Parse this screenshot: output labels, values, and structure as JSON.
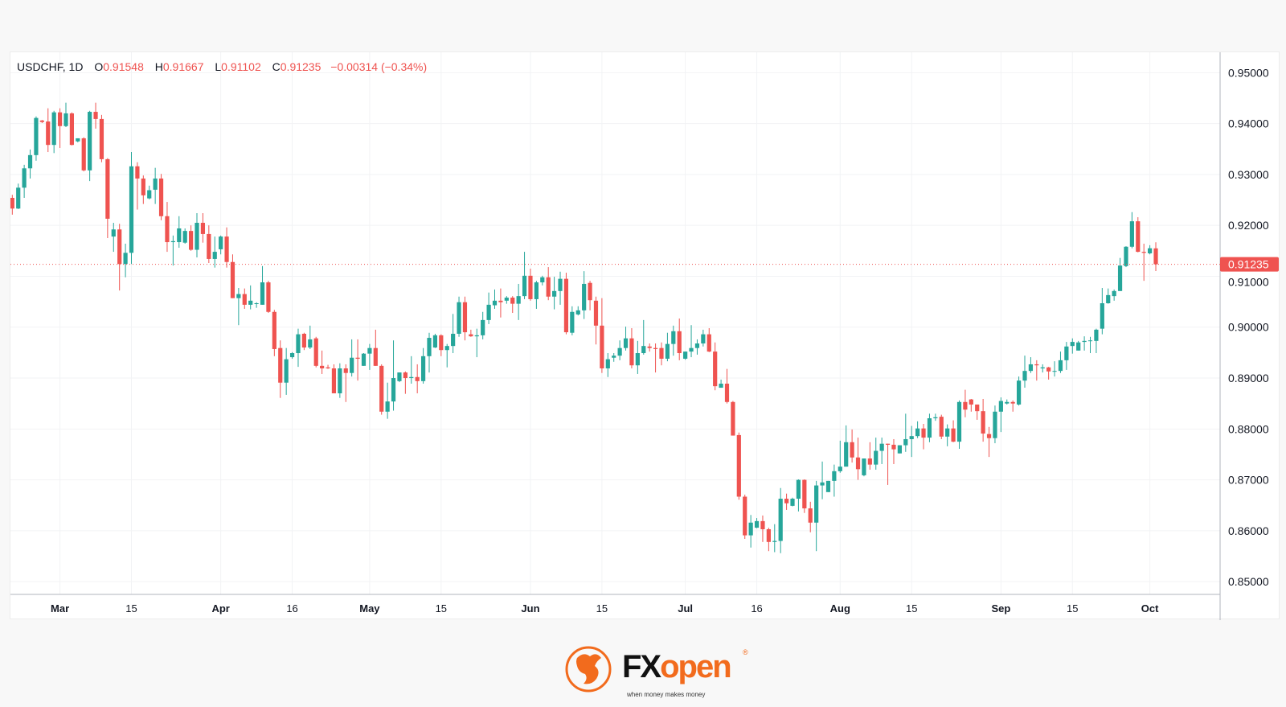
{
  "legend": {
    "symbol": "USDCHF, 1D",
    "o_label": "O",
    "o": "0.91548",
    "h_label": "H",
    "h": "0.91667",
    "l_label": "L",
    "l": "0.91102",
    "c_label": "C",
    "c": "0.91235",
    "change": "−0.00314 (−0.34%)"
  },
  "colors": {
    "up": "#26a69a",
    "down": "#ef5350",
    "grid": "#f2f3f5",
    "text": "#131722",
    "brand": "#f26b1d"
  },
  "logo": {
    "brand": "FXopen",
    "brand_fx": "FX",
    "brand_open": "open",
    "tagline": "when money makes money",
    "registered": "®"
  },
  "chart_data": {
    "type": "candlestick",
    "symbol": "USDCHF",
    "interval": "1D",
    "ylim": [
      0.8475,
      0.954
    ],
    "grid": true,
    "last_price": "0.91235",
    "y_ticks": [
      "0.95000",
      "0.94000",
      "0.93000",
      "0.92000",
      "0.91000",
      "0.90000",
      "0.89000",
      "0.88000",
      "0.87000",
      "0.86000",
      "0.85000"
    ],
    "x_ticks": [
      {
        "label": "Mar",
        "index": 8,
        "bold": true
      },
      {
        "label": "15",
        "index": 20
      },
      {
        "label": "Apr",
        "index": 35,
        "bold": true
      },
      {
        "label": "16",
        "index": 47
      },
      {
        "label": "May",
        "index": 60,
        "bold": true
      },
      {
        "label": "15",
        "index": 72
      },
      {
        "label": "Jun",
        "index": 87,
        "bold": true
      },
      {
        "label": "15",
        "index": 99
      },
      {
        "label": "Jul",
        "index": 113,
        "bold": true
      },
      {
        "label": "16",
        "index": 125
      },
      {
        "label": "Aug",
        "index": 139,
        "bold": true
      },
      {
        "label": "15",
        "index": 151
      },
      {
        "label": "Sep",
        "index": 166,
        "bold": true
      },
      {
        "label": "15",
        "index": 178
      },
      {
        "label": "Oct",
        "index": 191,
        "bold": true
      }
    ],
    "ohlc_fields": [
      "open",
      "high",
      "low",
      "close"
    ],
    "ohlc": [
      [
        0.9254,
        0.926,
        0.9221,
        0.9233
      ],
      [
        0.9233,
        0.9282,
        0.9232,
        0.9274
      ],
      [
        0.9274,
        0.9319,
        0.9254,
        0.9312
      ],
      [
        0.9312,
        0.9349,
        0.9292,
        0.9338
      ],
      [
        0.9338,
        0.9414,
        0.9327,
        0.9411
      ],
      [
        0.9406,
        0.9407,
        0.9401,
        0.9403
      ],
      [
        0.9404,
        0.943,
        0.9344,
        0.9358
      ],
      [
        0.9358,
        0.9425,
        0.9342,
        0.9422
      ],
      [
        0.9422,
        0.943,
        0.9352,
        0.9395
      ],
      [
        0.9395,
        0.9441,
        0.9393,
        0.942
      ],
      [
        0.942,
        0.9422,
        0.9357,
        0.9358
      ],
      [
        0.9365,
        0.9371,
        0.9363,
        0.9371
      ],
      [
        0.9371,
        0.9373,
        0.9306,
        0.9308
      ],
      [
        0.9308,
        0.9425,
        0.9287,
        0.9423
      ],
      [
        0.9423,
        0.9441,
        0.939,
        0.9409
      ],
      [
        0.9409,
        0.9417,
        0.9324,
        0.933
      ],
      [
        0.933,
        0.9332,
        0.9175,
        0.9213
      ],
      [
        0.9178,
        0.9205,
        0.9148,
        0.9192
      ],
      [
        0.9192,
        0.9203,
        0.9072,
        0.9124
      ],
      [
        0.9124,
        0.9164,
        0.9098,
        0.9146
      ],
      [
        0.9146,
        0.9344,
        0.9124,
        0.9316
      ],
      [
        0.9316,
        0.9324,
        0.9231,
        0.9292
      ],
      [
        0.9292,
        0.9298,
        0.9242,
        0.9259
      ],
      [
        0.9253,
        0.9278,
        0.9251,
        0.9269
      ],
      [
        0.927,
        0.9313,
        0.9242,
        0.9292
      ],
      [
        0.9292,
        0.9301,
        0.921,
        0.9218
      ],
      [
        0.9218,
        0.9246,
        0.9148,
        0.9167
      ],
      [
        0.9167,
        0.918,
        0.9121,
        0.9169
      ],
      [
        0.9167,
        0.9218,
        0.9156,
        0.9194
      ],
      [
        0.9166,
        0.9194,
        0.9164,
        0.9189
      ],
      [
        0.9189,
        0.92,
        0.915,
        0.9152
      ],
      [
        0.9152,
        0.9224,
        0.9137,
        0.9205
      ],
      [
        0.9205,
        0.9224,
        0.9166,
        0.9183
      ],
      [
        0.9183,
        0.92,
        0.9126,
        0.9134
      ],
      [
        0.9134,
        0.9178,
        0.9117,
        0.9148
      ],
      [
        0.9153,
        0.918,
        0.9143,
        0.9178
      ],
      [
        0.9178,
        0.9196,
        0.9117,
        0.9128
      ],
      [
        0.9128,
        0.9143,
        0.9057,
        0.9057
      ],
      [
        0.9057,
        0.9077,
        0.9004,
        0.9065
      ],
      [
        0.9065,
        0.9076,
        0.9036,
        0.9044
      ],
      [
        0.9044,
        0.9082,
        0.9035,
        0.9052
      ],
      [
        0.9046,
        0.9049,
        0.9038,
        0.9047
      ],
      [
        0.9044,
        0.912,
        0.9044,
        0.9088
      ],
      [
        0.9088,
        0.9091,
        0.9028,
        0.903
      ],
      [
        0.903,
        0.9034,
        0.8943,
        0.8957
      ],
      [
        0.8959,
        0.8974,
        0.8861,
        0.8891
      ],
      [
        0.8891,
        0.8959,
        0.8867,
        0.8937
      ],
      [
        0.8941,
        0.8951,
        0.8938,
        0.8949
      ],
      [
        0.8949,
        0.8997,
        0.8922,
        0.8986
      ],
      [
        0.8987,
        0.8989,
        0.8955,
        0.896
      ],
      [
        0.896,
        0.9003,
        0.8957,
        0.8976
      ],
      [
        0.8978,
        0.8981,
        0.8921,
        0.8924
      ],
      [
        0.8924,
        0.8954,
        0.8908,
        0.8919
      ],
      [
        0.8921,
        0.8926,
        0.8918,
        0.8919
      ],
      [
        0.8919,
        0.8927,
        0.887,
        0.887
      ],
      [
        0.887,
        0.8929,
        0.8861,
        0.8919
      ],
      [
        0.8919,
        0.8927,
        0.8853,
        0.891
      ],
      [
        0.891,
        0.8976,
        0.8903,
        0.894
      ],
      [
        0.894,
        0.8976,
        0.8895,
        0.8938
      ],
      [
        0.8924,
        0.8949,
        0.8924,
        0.8948
      ],
      [
        0.8948,
        0.8967,
        0.8916,
        0.8959
      ],
      [
        0.8959,
        0.8995,
        0.8924,
        0.8924
      ],
      [
        0.8924,
        0.8927,
        0.8828,
        0.8834
      ],
      [
        0.8834,
        0.8891,
        0.882,
        0.8854
      ],
      [
        0.8854,
        0.8974,
        0.8836,
        0.89
      ],
      [
        0.8894,
        0.8911,
        0.8892,
        0.8911
      ],
      [
        0.8911,
        0.8913,
        0.8869,
        0.89
      ],
      [
        0.89,
        0.8943,
        0.8889,
        0.8902
      ],
      [
        0.8902,
        0.8927,
        0.887,
        0.8894
      ],
      [
        0.8894,
        0.8959,
        0.8889,
        0.8943
      ],
      [
        0.8943,
        0.8989,
        0.8911,
        0.8979
      ],
      [
        0.896,
        0.8987,
        0.8959,
        0.8984
      ],
      [
        0.8984,
        0.8986,
        0.8943,
        0.8955
      ],
      [
        0.8955,
        0.8967,
        0.8921,
        0.8963
      ],
      [
        0.8963,
        0.9026,
        0.8949,
        0.8987
      ],
      [
        0.8987,
        0.906,
        0.8981,
        0.9049
      ],
      [
        0.9049,
        0.906,
        0.8974,
        0.899
      ],
      [
        0.8986,
        0.8995,
        0.8981,
        0.8982
      ],
      [
        0.8982,
        0.8997,
        0.8941,
        0.8984
      ],
      [
        0.8984,
        0.903,
        0.8976,
        0.9014
      ],
      [
        0.9014,
        0.9068,
        0.9006,
        0.9044
      ],
      [
        0.9043,
        0.9074,
        0.9036,
        0.9052
      ],
      [
        0.9052,
        0.9076,
        0.9019,
        0.9049
      ],
      [
        0.9052,
        0.9061,
        0.9046,
        0.9058
      ],
      [
        0.9058,
        0.9061,
        0.9028,
        0.9046
      ],
      [
        0.9046,
        0.9085,
        0.9014,
        0.9061
      ],
      [
        0.9061,
        0.9148,
        0.9055,
        0.9101
      ],
      [
        0.9101,
        0.9115,
        0.9052,
        0.9055
      ],
      [
        0.9055,
        0.9091,
        0.9036,
        0.9088
      ],
      [
        0.9088,
        0.9101,
        0.9082,
        0.9098
      ],
      [
        0.9098,
        0.9118,
        0.9053,
        0.906
      ],
      [
        0.906,
        0.9099,
        0.9035,
        0.9071
      ],
      [
        0.9071,
        0.9109,
        0.9044,
        0.9095
      ],
      [
        0.9095,
        0.9107,
        0.8986,
        0.899
      ],
      [
        0.8989,
        0.9041,
        0.8984,
        0.903
      ],
      [
        0.9025,
        0.9041,
        0.9023,
        0.9033
      ],
      [
        0.9033,
        0.911,
        0.9016,
        0.9085
      ],
      [
        0.9087,
        0.9091,
        0.9033,
        0.9053
      ],
      [
        0.9052,
        0.906,
        0.8966,
        0.9003
      ],
      [
        0.9003,
        0.9057,
        0.891,
        0.8919
      ],
      [
        0.8919,
        0.8949,
        0.8902,
        0.8937
      ],
      [
        0.894,
        0.8949,
        0.8932,
        0.8944
      ],
      [
        0.8944,
        0.8974,
        0.8935,
        0.8959
      ],
      [
        0.8959,
        0.9001,
        0.8954,
        0.8978
      ],
      [
        0.8978,
        0.8998,
        0.8919,
        0.8925
      ],
      [
        0.8925,
        0.8973,
        0.8908,
        0.8949
      ],
      [
        0.8949,
        0.9014,
        0.8946,
        0.8963
      ],
      [
        0.8962,
        0.8968,
        0.8952,
        0.8959
      ],
      [
        0.8959,
        0.8968,
        0.8911,
        0.8957
      ],
      [
        0.8959,
        0.897,
        0.8925,
        0.8938
      ],
      [
        0.8938,
        0.8989,
        0.8933,
        0.8967
      ],
      [
        0.8967,
        0.9003,
        0.8944,
        0.8992
      ],
      [
        0.8992,
        0.9017,
        0.8935,
        0.8949
      ],
      [
        0.8938,
        0.8952,
        0.8936,
        0.8952
      ],
      [
        0.8952,
        0.9004,
        0.8941,
        0.8959
      ],
      [
        0.8959,
        0.8976,
        0.8946,
        0.8968
      ],
      [
        0.8968,
        0.8995,
        0.8962,
        0.8986
      ],
      [
        0.8986,
        0.8998,
        0.8951,
        0.8952
      ],
      [
        0.8952,
        0.897,
        0.8876,
        0.8884
      ],
      [
        0.8881,
        0.8897,
        0.8881,
        0.8889
      ],
      [
        0.8889,
        0.8918,
        0.885,
        0.8853
      ],
      [
        0.8853,
        0.8855,
        0.8787,
        0.8787
      ],
      [
        0.8788,
        0.8793,
        0.8661,
        0.8667
      ],
      [
        0.8667,
        0.8671,
        0.8584,
        0.8591
      ],
      [
        0.8591,
        0.8631,
        0.8567,
        0.8616
      ],
      [
        0.8606,
        0.8625,
        0.8605,
        0.8619
      ],
      [
        0.8619,
        0.863,
        0.8578,
        0.8603
      ],
      [
        0.8603,
        0.8606,
        0.856,
        0.8578
      ],
      [
        0.8578,
        0.8613,
        0.8558,
        0.858
      ],
      [
        0.858,
        0.8684,
        0.8556,
        0.8663
      ],
      [
        0.8663,
        0.8673,
        0.8641,
        0.8654
      ],
      [
        0.8649,
        0.8665,
        0.8648,
        0.8663
      ],
      [
        0.8663,
        0.8701,
        0.8638,
        0.87
      ],
      [
        0.87,
        0.8701,
        0.8635,
        0.8644
      ],
      [
        0.8644,
        0.8657,
        0.8597,
        0.8616
      ],
      [
        0.8616,
        0.8698,
        0.856,
        0.8689
      ],
      [
        0.8689,
        0.8736,
        0.8662,
        0.8695
      ],
      [
        0.8676,
        0.8698,
        0.8676,
        0.8698
      ],
      [
        0.8698,
        0.873,
        0.8667,
        0.8717
      ],
      [
        0.8717,
        0.8777,
        0.8714,
        0.8726
      ],
      [
        0.8726,
        0.8807,
        0.8726,
        0.8774
      ],
      [
        0.8774,
        0.8799,
        0.8734,
        0.8744
      ],
      [
        0.8744,
        0.8783,
        0.87,
        0.8721
      ],
      [
        0.8709,
        0.8742,
        0.8707,
        0.8742
      ],
      [
        0.8742,
        0.8774,
        0.872,
        0.873
      ],
      [
        0.873,
        0.8783,
        0.872,
        0.8757
      ],
      [
        0.8757,
        0.8783,
        0.8731,
        0.8771
      ],
      [
        0.8771,
        0.8771,
        0.869,
        0.8769
      ],
      [
        0.8769,
        0.878,
        0.8731,
        0.876
      ],
      [
        0.8752,
        0.8768,
        0.8752,
        0.8768
      ],
      [
        0.8768,
        0.883,
        0.8755,
        0.878
      ],
      [
        0.878,
        0.8806,
        0.8745,
        0.8786
      ],
      [
        0.8786,
        0.8815,
        0.8782,
        0.8801
      ],
      [
        0.8801,
        0.881,
        0.876,
        0.8783
      ],
      [
        0.8783,
        0.883,
        0.8774,
        0.8821
      ],
      [
        0.8821,
        0.883,
        0.8816,
        0.8823
      ],
      [
        0.8824,
        0.8828,
        0.878,
        0.8785
      ],
      [
        0.8785,
        0.8809,
        0.8766,
        0.8801
      ],
      [
        0.8801,
        0.8817,
        0.8774,
        0.8775
      ],
      [
        0.8775,
        0.8856,
        0.8761,
        0.8853
      ],
      [
        0.8853,
        0.8877,
        0.8823,
        0.8838
      ],
      [
        0.8858,
        0.8859,
        0.8834,
        0.8848
      ],
      [
        0.8848,
        0.8848,
        0.8818,
        0.8835
      ],
      [
        0.8835,
        0.8859,
        0.8775,
        0.8791
      ],
      [
        0.879,
        0.8804,
        0.8745,
        0.8782
      ],
      [
        0.8782,
        0.8846,
        0.8772,
        0.8834
      ],
      [
        0.8834,
        0.8862,
        0.8794,
        0.8855
      ],
      [
        0.885,
        0.8858,
        0.8848,
        0.8853
      ],
      [
        0.8853,
        0.8856,
        0.8834,
        0.885
      ],
      [
        0.8848,
        0.8903,
        0.8846,
        0.8895
      ],
      [
        0.8895,
        0.8944,
        0.8881,
        0.8914
      ],
      [
        0.8914,
        0.8941,
        0.891,
        0.8927
      ],
      [
        0.8927,
        0.8935,
        0.8895,
        0.8925
      ],
      [
        0.8919,
        0.8927,
        0.8911,
        0.8921
      ],
      [
        0.8921,
        0.8922,
        0.8897,
        0.8913
      ],
      [
        0.8913,
        0.8933,
        0.8903,
        0.8914
      ],
      [
        0.8914,
        0.8952,
        0.891,
        0.8935
      ],
      [
        0.8935,
        0.8971,
        0.8916,
        0.8962
      ],
      [
        0.8963,
        0.8978,
        0.8948,
        0.8971
      ],
      [
        0.8954,
        0.8973,
        0.8954,
        0.897
      ],
      [
        0.8971,
        0.8982,
        0.8954,
        0.8973
      ],
      [
        0.8973,
        0.8981,
        0.8949,
        0.8974
      ],
      [
        0.8973,
        0.8997,
        0.8949,
        0.8995
      ],
      [
        0.8997,
        0.9077,
        0.8986,
        0.9047
      ],
      [
        0.9047,
        0.9076,
        0.9046,
        0.9063
      ],
      [
        0.9061,
        0.9074,
        0.9052,
        0.9071
      ],
      [
        0.9071,
        0.9136,
        0.9071,
        0.9121
      ],
      [
        0.912,
        0.9159,
        0.9118,
        0.9158
      ],
      [
        0.9158,
        0.9226,
        0.9155,
        0.9208
      ],
      [
        0.9208,
        0.9216,
        0.9147,
        0.9148
      ],
      [
        0.9148,
        0.9164,
        0.9091,
        0.9146
      ],
      [
        0.9145,
        0.9161,
        0.9143,
        0.9155
      ],
      [
        0.91548,
        0.91667,
        0.91102,
        0.91235
      ]
    ]
  }
}
